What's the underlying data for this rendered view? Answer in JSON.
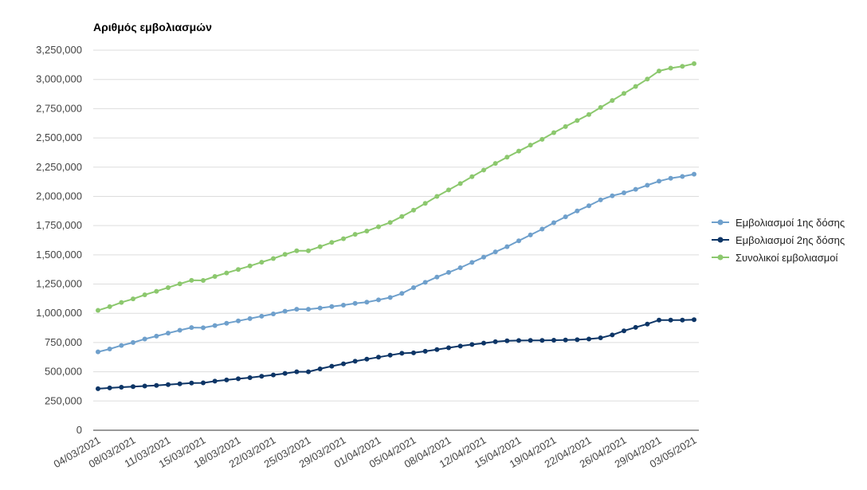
{
  "chart_data": {
    "type": "line",
    "title": "Αριθμός εμβολιασμών",
    "xlabel": "",
    "ylabel": "",
    "ylim": [
      0,
      3250000
    ],
    "yticks": [
      0,
      250000,
      500000,
      750000,
      1000000,
      1250000,
      1500000,
      1750000,
      2000000,
      2250000,
      2500000,
      2750000,
      3000000,
      3250000
    ],
    "ytick_labels": [
      "0",
      "250,000",
      "500,000",
      "750,000",
      "1,000,000",
      "1,250,000",
      "1,500,000",
      "1,750,000",
      "2,000,000",
      "2,250,000",
      "2,500,000",
      "2,750,000",
      "3,000,000",
      "3,250,000"
    ],
    "x_tick_labels": [
      "04/03/2021",
      "08/03/2021",
      "11/03/2021",
      "15/03/2021",
      "18/03/2021",
      "22/03/2021",
      "25/03/2021",
      "29/03/2021",
      "01/04/2021",
      "05/04/2021",
      "08/04/2021",
      "12/04/2021",
      "15/04/2021",
      "19/04/2021",
      "22/04/2021",
      "26/04/2021",
      "29/04/2021",
      "03/05/2021"
    ],
    "grid": true,
    "legend_position": "right",
    "series": [
      {
        "name": "Εμβολιασμοί 1ης δόσης",
        "color": "#6fa0cc",
        "values": [
          670000,
          695000,
          725000,
          750000,
          780000,
          805000,
          830000,
          855000,
          878000,
          876000,
          895000,
          915000,
          935000,
          955000,
          975000,
          995000,
          1018000,
          1035000,
          1035000,
          1045000,
          1058000,
          1070000,
          1085000,
          1095000,
          1115000,
          1135000,
          1170000,
          1220000,
          1265000,
          1310000,
          1350000,
          1390000,
          1435000,
          1480000,
          1525000,
          1570000,
          1620000,
          1670000,
          1720000,
          1775000,
          1825000,
          1875000,
          1920000,
          1970000,
          2005000,
          2030000,
          2060000,
          2095000,
          2130000,
          2155000,
          2170000,
          2190000
        ]
      },
      {
        "name": "Εμβολιασμοί 2ης δόσης",
        "color": "#0d3566",
        "values": [
          355000,
          362000,
          368000,
          373000,
          378000,
          383000,
          390000,
          397000,
          404000,
          405000,
          420000,
          430000,
          440000,
          450000,
          462000,
          473000,
          486000,
          500000,
          500000,
          525000,
          548000,
          568000,
          590000,
          608000,
          625000,
          642000,
          658000,
          662000,
          675000,
          690000,
          705000,
          720000,
          733000,
          745000,
          757000,
          765000,
          767000,
          768000,
          768000,
          770000,
          772000,
          774000,
          780000,
          790000,
          815000,
          850000,
          880000,
          908000,
          942000,
          942000,
          942000,
          945000
        ]
      },
      {
        "name": "Συνολικοί εμβολιασμοί",
        "color": "#8cc86e",
        "values": [
          1025000,
          1057000,
          1093000,
          1123000,
          1158000,
          1188000,
          1220000,
          1252000,
          1282000,
          1281000,
          1315000,
          1345000,
          1375000,
          1405000,
          1437000,
          1468000,
          1504000,
          1535000,
          1535000,
          1570000,
          1606000,
          1638000,
          1675000,
          1703000,
          1740000,
          1777000,
          1828000,
          1882000,
          1940000,
          2000000,
          2055000,
          2110000,
          2168000,
          2225000,
          2282000,
          2335000,
          2387000,
          2438000,
          2488000,
          2545000,
          2597000,
          2649000,
          2700000,
          2760000,
          2820000,
          2880000,
          2940000,
          3003000,
          3072000,
          3097000,
          3112000,
          3135000
        ]
      }
    ]
  }
}
